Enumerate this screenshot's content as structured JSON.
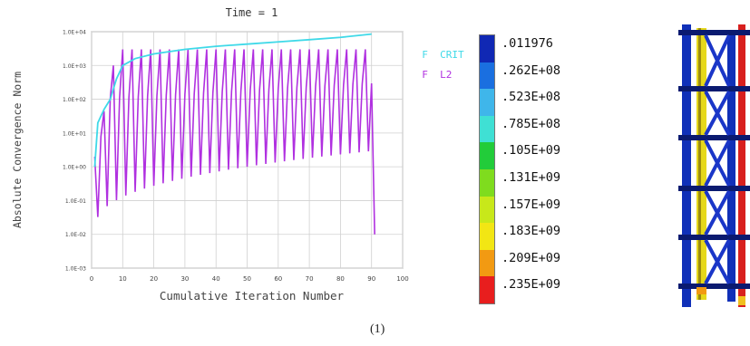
{
  "chart_data": {
    "type": "line",
    "title": "Time = 1",
    "xlabel": "Cumulative Iteration Number",
    "ylabel": "Absolute Convergence Norm",
    "xlim": [
      0,
      100
    ],
    "ylim_log10": [
      -3,
      4
    ],
    "x_ticks": [
      "0",
      "10",
      "20",
      "30",
      "40",
      "50",
      "60",
      "70",
      "80",
      "90",
      "100"
    ],
    "y_ticks": [
      "1.0E+04",
      "1.0E+03",
      "1.0E+02",
      "1.0E+01",
      "1.0E+00",
      "1.0E-01",
      "1.0E-02",
      "1.0E-03"
    ],
    "grid": true,
    "legend_position": "right",
    "series": [
      {
        "name": "F  CRIT",
        "color": "#3fd9e8",
        "x": [
          1,
          2,
          4,
          6,
          8,
          10,
          14,
          20,
          30,
          40,
          50,
          60,
          70,
          80,
          90
        ],
        "y": [
          1.0,
          20,
          50,
          100,
          400,
          1000,
          1600,
          2200,
          3000,
          3700,
          4300,
          5000,
          5800,
          6800,
          8500
        ]
      },
      {
        "name": "F  L2",
        "color": "#b030e0",
        "iterations": 91,
        "range_x": [
          1,
          91
        ],
        "peak_envelope_y": [
          3000,
          3000
        ],
        "trough_envelope_y": [
          0.01,
          3.0
        ],
        "mid_level_y": [
          100,
          300
        ],
        "final_drop_y": 0.01
      }
    ]
  },
  "colorbar": {
    "labels": [
      ".011976",
      ".262E+08",
      ".523E+08",
      ".785E+08",
      ".105E+09",
      ".131E+09",
      ".157E+09",
      ".183E+09",
      ".209E+09",
      ".235E+09"
    ],
    "colors": [
      "#1028b4",
      "#1a6fe0",
      "#3fb6ea",
      "#3fe0d4",
      "#22cc3a",
      "#7fdc1e",
      "#c8e81a",
      "#f2e614",
      "#f29a12",
      "#e81e1e"
    ]
  },
  "caption": "(1)"
}
